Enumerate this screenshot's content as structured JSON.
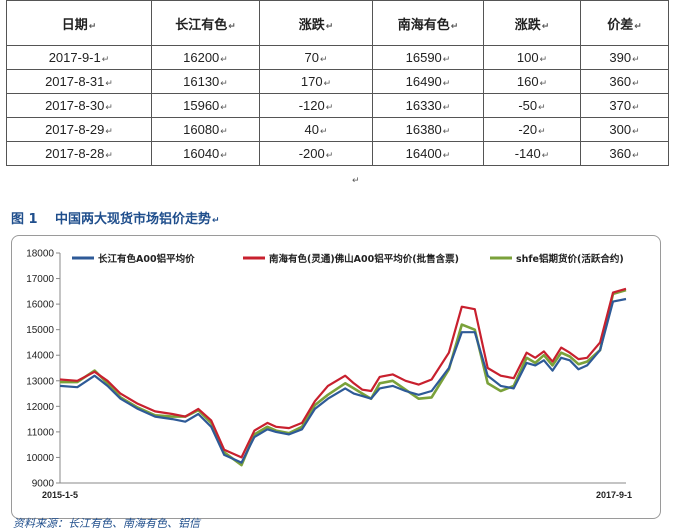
{
  "table": {
    "headers": [
      "日期",
      "长江有色",
      "涨跌",
      "南海有色",
      "涨跌",
      "价差"
    ],
    "rows": [
      [
        "2017-9-1",
        "16200",
        "70",
        "16590",
        "100",
        "390"
      ],
      [
        "2017-8-31",
        "16130",
        "170",
        "16490",
        "160",
        "360"
      ],
      [
        "2017-8-30",
        "15960",
        "-120",
        "16330",
        "-50",
        "370"
      ],
      [
        "2017-8-29",
        "16080",
        "40",
        "16380",
        "-20",
        "300"
      ],
      [
        "2017-8-28",
        "16040",
        "-200",
        "16400",
        "-140",
        "360"
      ]
    ]
  },
  "figure": {
    "number": "图 1",
    "title": "中国两大现货市场铝价走势"
  },
  "source_note": "资料来源：长江有色、南海有色、铝信",
  "chart_data": {
    "type": "line",
    "x_start_label": "2015-1-5",
    "x_end_label": "2017-9-1",
    "ylim": [
      9000,
      18000
    ],
    "yticks": [
      9000,
      10000,
      11000,
      12000,
      13000,
      14000,
      15000,
      16000,
      17000,
      18000
    ],
    "grid": false,
    "legend_position": "top",
    "x": [
      0,
      4,
      8,
      11,
      14,
      18,
      22,
      26,
      29,
      32,
      35,
      38,
      42,
      45,
      48,
      50,
      53,
      56,
      59,
      62,
      66,
      68,
      70,
      72,
      74,
      77,
      80,
      83,
      86,
      90,
      93,
      96,
      99,
      102,
      105,
      108,
      110,
      112,
      114,
      116,
      118,
      120,
      122,
      125,
      128,
      131
    ],
    "series": [
      {
        "name": "长江有色A00铝平均价",
        "color": "#2e5a97",
        "values": [
          12800,
          12750,
          13200,
          12800,
          12300,
          11900,
          11600,
          11500,
          11400,
          11700,
          11200,
          10100,
          9800,
          10800,
          11100,
          11000,
          10900,
          11100,
          11900,
          12300,
          12700,
          12500,
          12400,
          12300,
          12700,
          12800,
          12600,
          12450,
          12600,
          13500,
          14900,
          14900,
          13200,
          12800,
          12700,
          13700,
          13600,
          13800,
          13400,
          13900,
          13800,
          13450,
          13600,
          14200,
          16100,
          16200
        ]
      },
      {
        "name": "南海有色(灵通)佛山A00铝平均价(批售含票)",
        "color": "#c8202e",
        "values": [
          13050,
          13000,
          13350,
          13000,
          12500,
          12100,
          11800,
          11700,
          11600,
          11900,
          11450,
          10300,
          10000,
          11050,
          11350,
          11200,
          11150,
          11350,
          12200,
          12800,
          13200,
          12900,
          12650,
          12600,
          13150,
          13250,
          13000,
          12850,
          13050,
          14100,
          15900,
          15800,
          13500,
          13200,
          13100,
          14100,
          13900,
          14150,
          13750,
          14300,
          14100,
          13850,
          13900,
          14500,
          16450,
          16600
        ]
      },
      {
        "name": "shfe铝期货价(活跃合约)",
        "color": "#7aa13a",
        "values": [
          12950,
          12950,
          13400,
          12900,
          12350,
          11950,
          11650,
          11600,
          11600,
          11850,
          11350,
          10200,
          9700,
          10900,
          11200,
          11050,
          10950,
          11200,
          12050,
          12450,
          12900,
          12700,
          12500,
          12300,
          12900,
          13000,
          12650,
          12300,
          12350,
          13450,
          15200,
          15000,
          12900,
          12600,
          12800,
          13900,
          13700,
          14000,
          13600,
          14100,
          13950,
          13650,
          13750,
          14200,
          16400,
          16550
        ]
      }
    ]
  }
}
